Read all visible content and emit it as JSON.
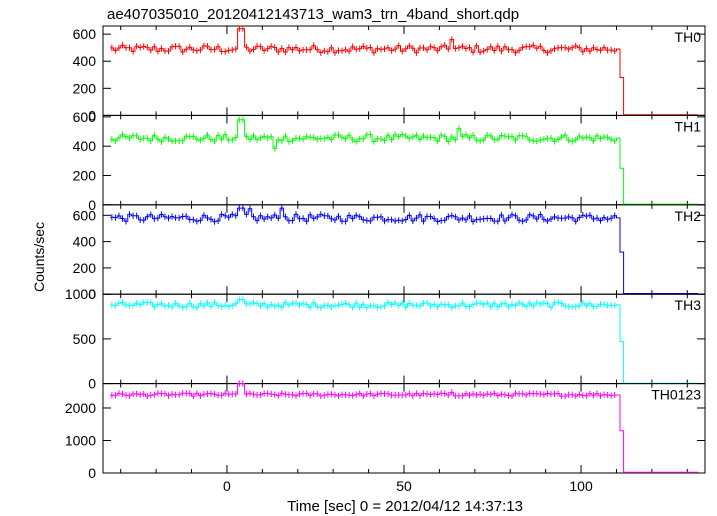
{
  "title": "ae407035010_20120412143713_wam3_trn_4band_short.qdp",
  "xlabel": "Time [sec] 0 = 2012/04/12 14:37:13",
  "ylabel": "Counts/sec",
  "chart_data": {
    "type": "line",
    "xlim": [
      -35,
      135
    ],
    "x_ticks": [
      0,
      50,
      100
    ],
    "panels": [
      {
        "name": "TH0",
        "color": "#ff0000",
        "ylim": [
          0,
          660
        ],
        "yticks": [
          0,
          200,
          400,
          600
        ],
        "base": 490,
        "noise": 28,
        "spikes": [
          [
            3.5,
            640
          ],
          [
            63,
            560
          ]
        ],
        "drop": [
          [
            110,
            490
          ],
          [
            111,
            280
          ],
          [
            112,
            5
          ],
          [
            133,
            5
          ]
        ]
      },
      {
        "name": "TH1",
        "color": "#00ff00",
        "ylim": [
          0,
          610
        ],
        "yticks": [
          0,
          200,
          400,
          600
        ],
        "base": 455,
        "noise": 25,
        "spikes": [
          [
            3.5,
            580
          ],
          [
            65,
            520
          ],
          [
            13,
            385
          ]
        ],
        "drop": [
          [
            110,
            455
          ],
          [
            111,
            250
          ],
          [
            112,
            5
          ],
          [
            133,
            5
          ]
        ]
      },
      {
        "name": "TH2",
        "color": "#0000ff",
        "ylim": [
          0,
          680
        ],
        "yticks": [
          0,
          200,
          400,
          600
        ],
        "base": 580,
        "noise": 28,
        "spikes": [
          [
            3.5,
            655
          ],
          [
            6,
            650
          ],
          [
            15,
            655
          ]
        ],
        "drop": [
          [
            110,
            580
          ],
          [
            111,
            320
          ],
          [
            112,
            5
          ],
          [
            133,
            5
          ]
        ]
      },
      {
        "name": "TH3",
        "color": "#00ffff",
        "ylim": [
          0,
          1000
        ],
        "yticks": [
          0,
          500,
          1000
        ],
        "base": 880,
        "noise": 30,
        "spikes": [
          [
            3.5,
            940
          ]
        ],
        "drop": [
          [
            110,
            880
          ],
          [
            111,
            470
          ],
          [
            112,
            5
          ],
          [
            133,
            5
          ]
        ]
      },
      {
        "name": "TH0123",
        "color": "#ff00ff",
        "ylim": [
          0,
          2750
        ],
        "yticks": [
          0,
          1000,
          2000
        ],
        "base": 2410,
        "noise": 45,
        "spikes": [
          [
            3.5,
            2750
          ],
          [
            63,
            2480
          ]
        ],
        "drop": [
          [
            110,
            2400
          ],
          [
            111,
            1300
          ],
          [
            112,
            20
          ],
          [
            133,
            20
          ]
        ]
      }
    ]
  }
}
